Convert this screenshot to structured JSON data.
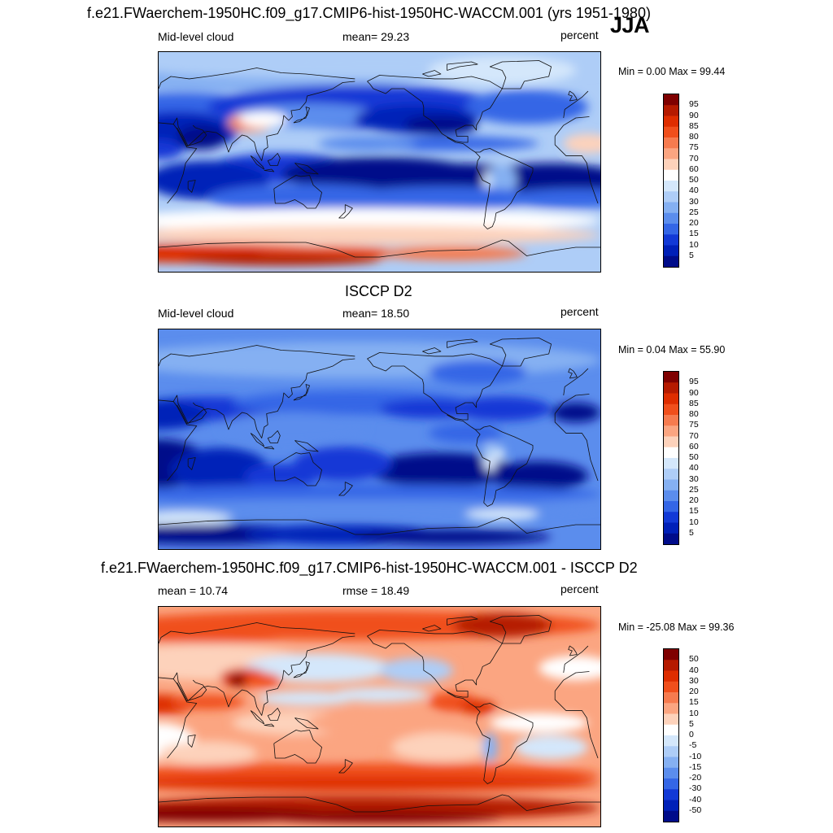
{
  "header": {
    "main_title": "f.e21.FWaerchem-1950HC.f09_g17.CMIP6-hist-1950HC-WACCM.001 (yrs 1951-1980)",
    "season": "JJA"
  },
  "panels": [
    {
      "id": "model",
      "left_label": "Mid-level cloud",
      "center_label": "mean=  29.23",
      "units": "percent",
      "minmax": "Min =   0.00 Max =  99.44",
      "colorbar_ticks": [
        "95",
        "90",
        "85",
        "80",
        "75",
        "70",
        "60",
        "50",
        "40",
        "30",
        "25",
        "20",
        "15",
        "10",
        "5"
      ]
    },
    {
      "id": "obs",
      "title": "ISCCP D2",
      "left_label": "Mid-level cloud",
      "center_label": "mean=  18.50",
      "units": "percent",
      "minmax": "Min =   0.04 Max =  55.90",
      "colorbar_ticks": [
        "95",
        "90",
        "85",
        "80",
        "75",
        "70",
        "60",
        "50",
        "40",
        "30",
        "25",
        "20",
        "15",
        "10",
        "5"
      ]
    },
    {
      "id": "diff",
      "title": "f.e21.FWaerchem-1950HC.f09_g17.CMIP6-hist-1950HC-WACCM.001 - ISCCP D2",
      "left_label": "mean =  10.74",
      "center_label": "rmse =  18.49",
      "units": "percent",
      "minmax": "Min = -25.08 Max =  99.36",
      "colorbar_ticks": [
        "50",
        "40",
        "30",
        "20",
        "15",
        "10",
        "5",
        "0",
        "-5",
        "-10",
        "-15",
        "-20",
        "-30",
        "-40",
        "-50"
      ]
    }
  ],
  "colors": {
    "palette": [
      "#7f0000",
      "#b51a00",
      "#de2d00",
      "#f04f1c",
      "#f67b4f",
      "#fba581",
      "#fdd2bb",
      "#ffffff",
      "#d4e7fb",
      "#aecdf7",
      "#85b0f2",
      "#5b8ded",
      "#3466e6",
      "#1239d6",
      "#0020b8",
      "#000c8a"
    ]
  },
  "chart_data": [
    {
      "type": "heatmap",
      "title": "Mid-level cloud",
      "subtitle": "mean=  29.23",
      "units": "percent",
      "min": 0.0,
      "max": 99.44,
      "mean": 29.23,
      "projection": "cylindrical equidistant",
      "levels": [
        5,
        10,
        15,
        20,
        25,
        30,
        40,
        50,
        60,
        70,
        75,
        80,
        85,
        90,
        95
      ]
    },
    {
      "type": "heatmap",
      "title": "ISCCP D2",
      "subtitle": "Mid-level cloud",
      "units": "percent",
      "min": 0.04,
      "max": 55.9,
      "mean": 18.5,
      "projection": "cylindrical equidistant",
      "levels": [
        5,
        10,
        15,
        20,
        25,
        30,
        40,
        50,
        60,
        70,
        75,
        80,
        85,
        90,
        95
      ]
    },
    {
      "type": "heatmap",
      "title": "f.e21.FWaerchem-1950HC.f09_g17.CMIP6-hist-1950HC-WACCM.001 - ISCCP D2",
      "units": "percent",
      "min": -25.08,
      "max": 99.36,
      "mean": 10.74,
      "rmse": 18.49,
      "projection": "cylindrical equidistant",
      "levels": [
        -50,
        -40,
        -30,
        -20,
        -15,
        -10,
        -5,
        0,
        5,
        10,
        15,
        20,
        30,
        40,
        50
      ]
    }
  ]
}
